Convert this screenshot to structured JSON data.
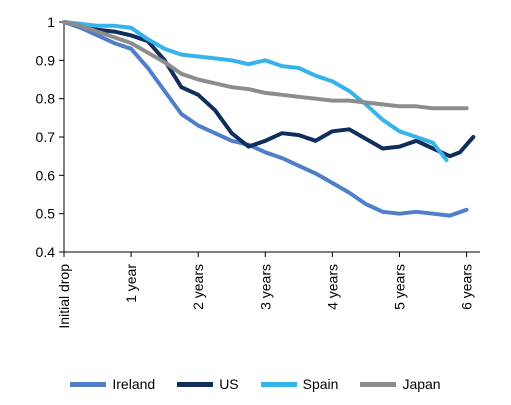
{
  "chart_data": {
    "type": "line",
    "title": "",
    "xlabel": "",
    "ylabel": "",
    "ylim": [
      0.4,
      1.0
    ],
    "yticks": [
      0.4,
      0.5,
      0.6,
      0.7,
      0.8,
      0.9,
      1
    ],
    "ytick_labels": [
      "0.4",
      "0.5",
      "0.6",
      "0.7",
      "0.8",
      "0.9",
      "1"
    ],
    "xlim": [
      0,
      6.2
    ],
    "xticks": [
      0,
      1,
      2,
      3,
      4,
      5,
      6
    ],
    "xtick_labels": [
      "Initial drop",
      "1 year",
      "2 years",
      "3 years",
      "4 years",
      "5 years",
      "6 years"
    ],
    "grid": false,
    "legend_position": "bottom",
    "series": [
      {
        "name": "Ireland",
        "color": "#4F7FC9",
        "x": [
          0,
          0.25,
          0.5,
          0.75,
          1,
          1.25,
          1.5,
          1.75,
          2,
          2.25,
          2.5,
          2.75,
          3,
          3.25,
          3.5,
          3.75,
          4,
          4.25,
          4.5,
          4.75,
          5,
          5.25,
          5.5,
          5.75,
          6
        ],
        "values": [
          1,
          0.985,
          0.965,
          0.945,
          0.93,
          0.88,
          0.82,
          0.76,
          0.73,
          0.71,
          0.69,
          0.68,
          0.66,
          0.645,
          0.625,
          0.605,
          0.58,
          0.555,
          0.525,
          0.505,
          0.5,
          0.505,
          0.5,
          0.495,
          0.51
        ]
      },
      {
        "name": "US",
        "color": "#102E5C",
        "x": [
          0,
          0.25,
          0.5,
          0.75,
          1,
          1.25,
          1.5,
          1.75,
          2,
          2.25,
          2.5,
          2.75,
          3,
          3.25,
          3.5,
          3.75,
          4,
          4.25,
          4.5,
          4.75,
          5,
          5.25,
          5.5,
          5.75,
          5.9,
          6.1
        ],
        "values": [
          1,
          0.99,
          0.98,
          0.975,
          0.965,
          0.95,
          0.9,
          0.83,
          0.81,
          0.77,
          0.71,
          0.675,
          0.69,
          0.71,
          0.705,
          0.69,
          0.715,
          0.72,
          0.695,
          0.67,
          0.675,
          0.69,
          0.67,
          0.65,
          0.66,
          0.7
        ]
      },
      {
        "name": "Spain",
        "color": "#36B4EA",
        "x": [
          0,
          0.25,
          0.5,
          0.75,
          1,
          1.25,
          1.5,
          1.75,
          2,
          2.25,
          2.5,
          2.75,
          3,
          3.25,
          3.5,
          3.75,
          4,
          4.25,
          4.5,
          4.75,
          5,
          5.25,
          5.5,
          5.7
        ],
        "values": [
          1,
          0.995,
          0.99,
          0.99,
          0.985,
          0.955,
          0.93,
          0.915,
          0.91,
          0.905,
          0.9,
          0.89,
          0.9,
          0.885,
          0.88,
          0.86,
          0.845,
          0.82,
          0.785,
          0.745,
          0.715,
          0.7,
          0.685,
          0.64
        ]
      },
      {
        "name": "Japan",
        "color": "#8C8C8C",
        "x": [
          0,
          0.25,
          0.5,
          0.75,
          1,
          1.25,
          1.5,
          1.75,
          2,
          2.25,
          2.5,
          2.75,
          3,
          3.25,
          3.5,
          3.75,
          4,
          4.25,
          4.5,
          4.75,
          5,
          5.25,
          5.5,
          5.75,
          6
        ],
        "values": [
          1,
          0.99,
          0.975,
          0.96,
          0.945,
          0.92,
          0.895,
          0.865,
          0.85,
          0.84,
          0.83,
          0.825,
          0.815,
          0.81,
          0.805,
          0.8,
          0.795,
          0.795,
          0.79,
          0.785,
          0.78,
          0.78,
          0.775,
          0.775,
          0.775
        ]
      }
    ]
  }
}
